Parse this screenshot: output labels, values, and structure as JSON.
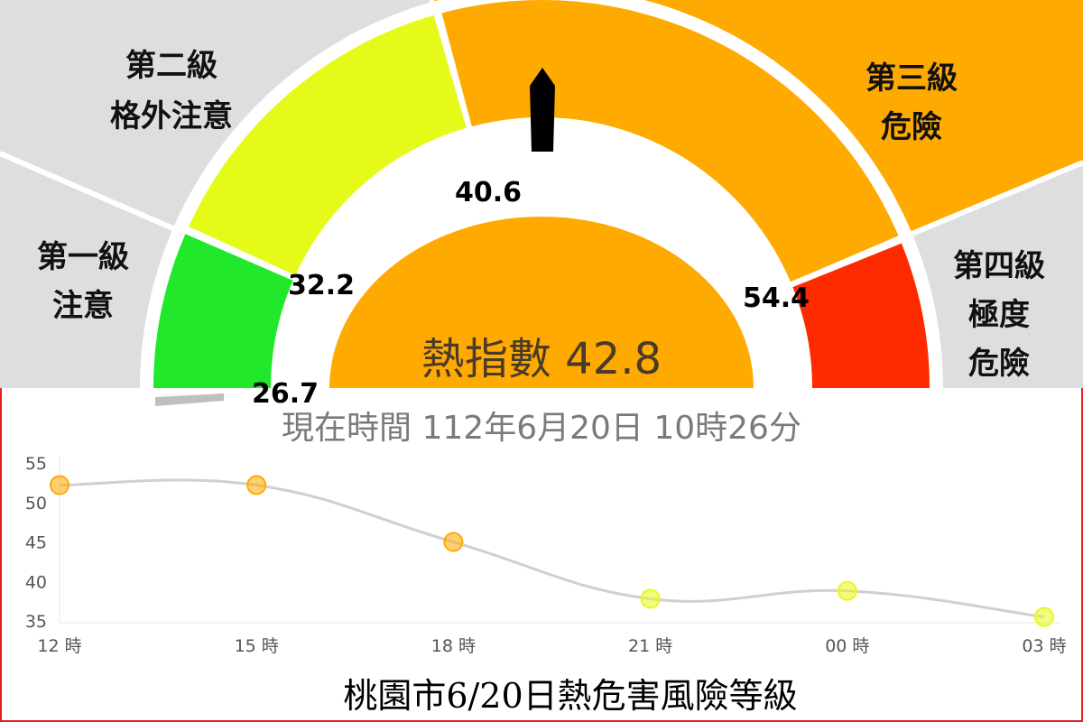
{
  "gauge": {
    "zones": [
      {
        "level": "第一級",
        "name": "注意",
        "color": "#22e82c"
      },
      {
        "level": "第二級",
        "name": "格外注意",
        "color": "#e6fa1a"
      },
      {
        "level": "第三級",
        "name": "危險",
        "color": "#ffaa00"
      },
      {
        "level": "第四級",
        "name": "極度危險",
        "color": "#ff2a00"
      }
    ],
    "thresholds": [
      "26.7",
      "32.2",
      "40.6",
      "54.4"
    ],
    "current_label": "熱指數 42.8",
    "current_value": 42.8,
    "timestamp": "現在時間 112年6月20日 10時26分"
  },
  "colors": {
    "band_bg": "#dedede",
    "accent": "#ffaa00",
    "line": "#d0d0d0",
    "frame": "#e02020"
  },
  "chart_data": {
    "type": "line",
    "categories": [
      "12 時",
      "15 時",
      "18 時",
      "21 時",
      "00 時",
      "03 時"
    ],
    "values": [
      52.2,
      52.2,
      45,
      37.8,
      38.8,
      35.5
    ],
    "point_colors": [
      "#ffaa00",
      "#ffaa00",
      "#ffaa00",
      "#e6fa1a",
      "#e6fa1a",
      "#e6fa1a"
    ],
    "yticks": [
      "55",
      "50",
      "45",
      "40",
      "35"
    ],
    "ylim": [
      35,
      55
    ],
    "grid": false
  },
  "caption": "桃園市6/20日熱危害風險等級"
}
